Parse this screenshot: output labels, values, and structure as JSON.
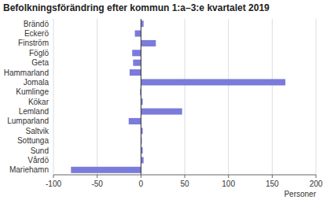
{
  "chart_data": {
    "type": "bar",
    "orientation": "horizontal",
    "title": "Befolkningsförändring efter kommun 1:a–3:e kvartalet 2019",
    "categories": [
      "Brändö",
      "Eckerö",
      "Finström",
      "Föglö",
      "Geta",
      "Hammarland",
      "Jomala",
      "Kumlinge",
      "Kökar",
      "Lemland",
      "Lumparland",
      "Saltvik",
      "Sottunga",
      "Sund",
      "Vårdö",
      "Mariehamn"
    ],
    "values": [
      3,
      -7,
      17,
      -10,
      -9,
      -13,
      165,
      -1,
      2,
      47,
      -14,
      2,
      1,
      2,
      3,
      -80
    ],
    "color": "#7b7bdb",
    "xlabel": "Personer",
    "xlim": [
      -100,
      200
    ],
    "xticks": [
      -100,
      -50,
      0,
      50,
      100,
      150,
      200
    ],
    "grid": true
  }
}
